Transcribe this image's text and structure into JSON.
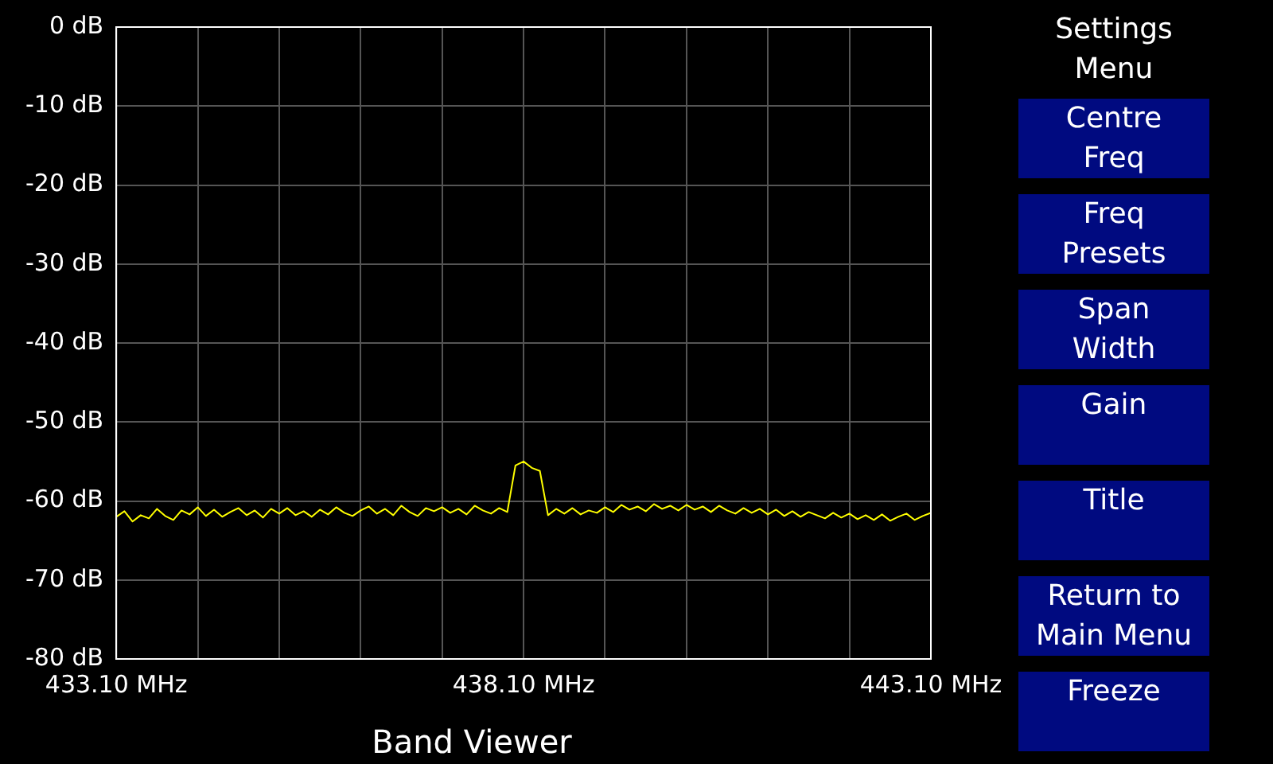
{
  "chart_data": {
    "type": "line",
    "title": "Band Viewer",
    "x": [
      433.1,
      433.2,
      433.3,
      433.4,
      433.5,
      433.6,
      433.7,
      433.8,
      433.9,
      434.0,
      434.1,
      434.2,
      434.3,
      434.4,
      434.5,
      434.6,
      434.7,
      434.8,
      434.9,
      435.0,
      435.1,
      435.2,
      435.3,
      435.4,
      435.5,
      435.6,
      435.7,
      435.8,
      435.9,
      436.0,
      436.1,
      436.2,
      436.3,
      436.4,
      436.5,
      436.6,
      436.7,
      436.8,
      436.9,
      437.0,
      437.1,
      437.2,
      437.3,
      437.4,
      437.5,
      437.6,
      437.7,
      437.8,
      437.9,
      438.0,
      438.1,
      438.2,
      438.3,
      438.4,
      438.5,
      438.6,
      438.7,
      438.8,
      438.9,
      439.0,
      439.1,
      439.2,
      439.3,
      439.4,
      439.5,
      439.6,
      439.7,
      439.8,
      439.9,
      440.0,
      440.1,
      440.2,
      440.3,
      440.4,
      440.5,
      440.6,
      440.7,
      440.8,
      440.9,
      441.0,
      441.1,
      441.2,
      441.3,
      441.4,
      441.5,
      441.6,
      441.7,
      441.8,
      441.9,
      442.0,
      442.1,
      442.2,
      442.3,
      442.4,
      442.5,
      442.6,
      442.7,
      442.8,
      442.9,
      443.0,
      443.1
    ],
    "series": [
      {
        "color": "#ffff00",
        "values": [
          -62.0,
          -61.3,
          -62.6,
          -61.8,
          -62.2,
          -61.0,
          -61.9,
          -62.4,
          -61.2,
          -61.7,
          -60.8,
          -61.9,
          -61.1,
          -62.0,
          -61.4,
          -60.9,
          -61.8,
          -61.2,
          -62.1,
          -61.0,
          -61.6,
          -60.9,
          -61.8,
          -61.3,
          -62.0,
          -61.1,
          -61.7,
          -60.8,
          -61.5,
          -61.9,
          -61.2,
          -60.7,
          -61.6,
          -61.0,
          -61.8,
          -60.6,
          -61.4,
          -61.9,
          -60.9,
          -61.3,
          -60.8,
          -61.5,
          -61.0,
          -61.7,
          -60.6,
          -61.2,
          -61.6,
          -60.9,
          -61.4,
          -55.5,
          -55.0,
          -55.8,
          -56.2,
          -61.8,
          -61.0,
          -61.6,
          -60.9,
          -61.7,
          -61.2,
          -61.5,
          -60.8,
          -61.4,
          -60.5,
          -61.1,
          -60.7,
          -61.3,
          -60.4,
          -61.0,
          -60.6,
          -61.2,
          -60.5,
          -61.1,
          -60.7,
          -61.4,
          -60.6,
          -61.2,
          -61.6,
          -60.9,
          -61.5,
          -61.0,
          -61.7,
          -61.1,
          -61.9,
          -61.3,
          -62.0,
          -61.4,
          -61.8,
          -62.2,
          -61.5,
          -62.1,
          -61.6,
          -62.3,
          -61.8,
          -62.4,
          -61.7,
          -62.5,
          -62.0,
          -61.6,
          -62.4,
          -61.9,
          -61.5
        ]
      }
    ],
    "xlim": [
      433.1,
      443.1
    ],
    "xticks": [
      {
        "value": 433.1,
        "label": "433.10 MHz"
      },
      {
        "value": 434.1,
        "label": null
      },
      {
        "value": 435.1,
        "label": null
      },
      {
        "value": 436.1,
        "label": null
      },
      {
        "value": 437.1,
        "label": null
      },
      {
        "value": 438.1,
        "label": "438.10 MHz"
      },
      {
        "value": 439.1,
        "label": null
      },
      {
        "value": 440.1,
        "label": null
      },
      {
        "value": 441.1,
        "label": null
      },
      {
        "value": 442.1,
        "label": null
      },
      {
        "value": 443.1,
        "label": "443.10 MHz"
      }
    ],
    "ylim": [
      -80,
      0
    ],
    "yticks": [
      {
        "value": -80,
        "label": "-80 dB"
      },
      {
        "value": -70,
        "label": "-70 dB"
      },
      {
        "value": -60,
        "label": "-60 dB"
      },
      {
        "value": -50,
        "label": "-50 dB"
      },
      {
        "value": -40,
        "label": "-40 dB"
      },
      {
        "value": -30,
        "label": "-30 dB"
      },
      {
        "value": -20,
        "label": "-20 dB"
      },
      {
        "value": -10,
        "label": "-10 dB"
      },
      {
        "value": 0,
        "label": "0 dB"
      }
    ],
    "grid": true,
    "legend": false,
    "marker": "none",
    "line_style": "solid",
    "annotations": [
      "Settings\nMenu",
      "Centre\nFreq",
      "Freq\nPresets",
      "Span\nWidth",
      "Gain",
      "Title",
      "Return to\nMain Menu",
      "Freeze"
    ]
  }
}
